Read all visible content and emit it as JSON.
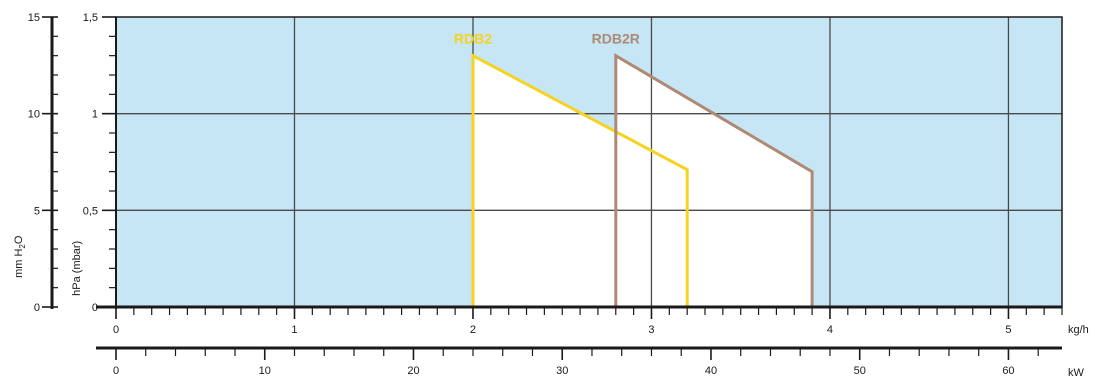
{
  "chart_data": {
    "type": "area",
    "grid": true,
    "colors": {
      "background": "#c6e6f6",
      "grid": "#4a4a4a",
      "axis": "#1a1a1a",
      "envelope_fill": "#ffffff"
    },
    "x_axis_primary": {
      "unit": "kg/h",
      "range": [
        0,
        5.3
      ],
      "ticks": [
        "0",
        "1",
        "2",
        "3",
        "4",
        "5"
      ],
      "tick_values": [
        0,
        1,
        2,
        3,
        4,
        5
      ],
      "minor_step": 0.1
    },
    "x_axis_secondary": {
      "unit": "kW",
      "range": [
        0,
        63.6
      ],
      "ticks": [
        "0",
        "10",
        "20",
        "30",
        "40",
        "50",
        "60"
      ],
      "tick_values": [
        0,
        10,
        20,
        30,
        40,
        50,
        60
      ],
      "minor_step": 2
    },
    "y_axis_primary": {
      "label": "hPa (mbar)",
      "range": [
        0,
        1.5
      ],
      "ticks": [
        "0",
        "0,5",
        "1",
        "1,5"
      ],
      "tick_values": [
        0,
        0.5,
        1,
        1.5
      ],
      "minor_step": 0.1
    },
    "y_axis_secondary": {
      "label": "mm H2O",
      "label_main": "mm H",
      "label_sub": "2",
      "label_end": "O",
      "range": [
        0,
        15
      ],
      "ticks": [
        "0",
        "5",
        "10",
        "15"
      ],
      "tick_values": [
        0,
        5,
        10,
        15
      ],
      "minor_step": 1
    },
    "series": [
      {
        "name": "RDB2",
        "color": "#f7d21e",
        "points": [
          [
            2.0,
            0
          ],
          [
            2.0,
            1.3
          ],
          [
            3.2,
            0.71
          ],
          [
            3.2,
            0
          ],
          [
            2.0,
            0
          ]
        ]
      },
      {
        "name": "RDB2R",
        "color": "#ae8a74",
        "points": [
          [
            2.8,
            0
          ],
          [
            2.8,
            1.3
          ],
          [
            3.9,
            0.7
          ],
          [
            3.9,
            0
          ],
          [
            2.8,
            0
          ]
        ]
      }
    ]
  }
}
